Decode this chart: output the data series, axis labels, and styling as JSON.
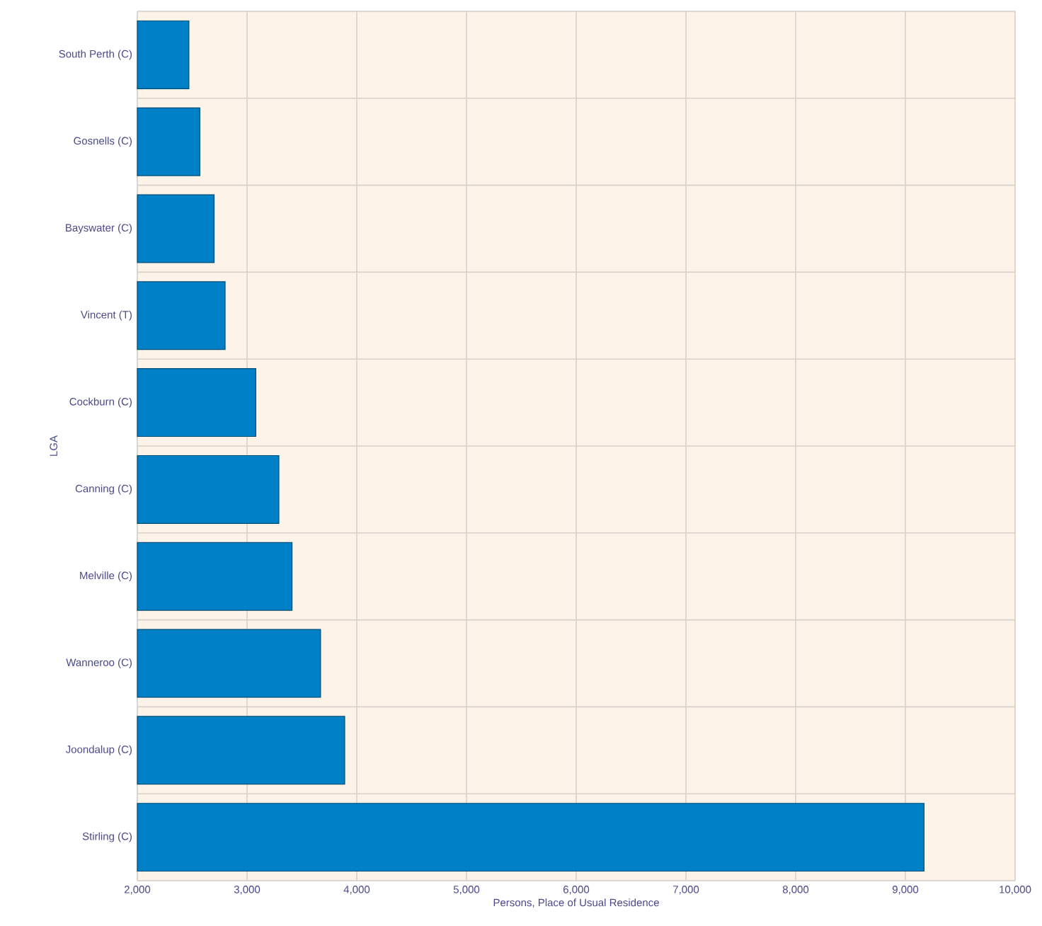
{
  "chart_data": {
    "type": "bar",
    "orientation": "horizontal",
    "xlabel": "Persons, Place of Usual Residence",
    "ylabel": "LGA",
    "categories": [
      "South Perth (C)",
      "Gosnells (C)",
      "Bayswater (C)",
      "Vincent (T)",
      "Cockburn (C)",
      "Canning (C)",
      "Melville (C)",
      "Wanneroo (C)",
      "Joondalup (C)",
      "Stirling (C)"
    ],
    "values": [
      2470,
      2570,
      2700,
      2800,
      3080,
      3290,
      3410,
      3670,
      3890,
      9170
    ],
    "color": "#0080c6",
    "xlim": [
      2000,
      10000
    ],
    "xticks": [
      {
        "value": 2000,
        "label": "2,000"
      },
      {
        "value": 3000,
        "label": "3,000"
      },
      {
        "value": 4000,
        "label": "4,000"
      },
      {
        "value": 5000,
        "label": "5,000"
      },
      {
        "value": 6000,
        "label": "6,000"
      },
      {
        "value": 7000,
        "label": "7,000"
      },
      {
        "value": 8000,
        "label": "8,000"
      },
      {
        "value": 9000,
        "label": "9,000"
      },
      {
        "value": 10000,
        "label": "10,000"
      }
    ],
    "grid": true
  }
}
